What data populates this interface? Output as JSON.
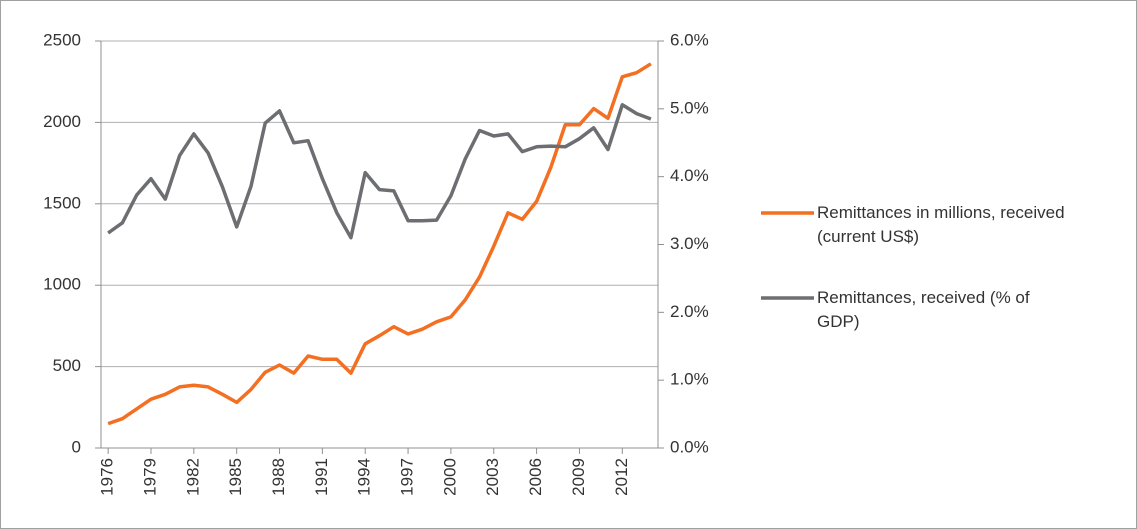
{
  "chart_data": {
    "type": "line",
    "x": [
      1976,
      1977,
      1978,
      1979,
      1980,
      1981,
      1982,
      1983,
      1984,
      1985,
      1986,
      1987,
      1988,
      1989,
      1990,
      1991,
      1992,
      1993,
      1994,
      1995,
      1996,
      1997,
      1998,
      1999,
      2000,
      2001,
      2002,
      2003,
      2004,
      2005,
      2006,
      2007,
      2008,
      2009,
      2010,
      2011,
      2012,
      2013,
      2014
    ],
    "xlim": [
      1975.5,
      2014.5
    ],
    "xticks": [
      1976,
      1979,
      1982,
      1985,
      1988,
      1991,
      1994,
      1997,
      2000,
      2003,
      2006,
      2009,
      2012
    ],
    "ylim": [
      0,
      2500
    ],
    "yticks": [
      0,
      500,
      1000,
      1500,
      2000,
      2500
    ],
    "y2lim": [
      0,
      6
    ],
    "y2ticks": [
      {
        "value": 0,
        "label": "0.0%"
      },
      {
        "value": 1,
        "label": "1.0%"
      },
      {
        "value": 2,
        "label": "2.0%"
      },
      {
        "value": 3,
        "label": "3.0%"
      },
      {
        "value": 4,
        "label": "4.0%"
      },
      {
        "value": 5,
        "label": "5.0%"
      },
      {
        "value": 6,
        "label": "6.0%"
      }
    ],
    "grid": true,
    "legend": "right",
    "series": [
      {
        "name": "Remittances in millions, received (current US$)",
        "color": "#f36f21",
        "values": [
          150,
          180,
          240,
          300,
          330,
          375,
          385,
          375,
          330,
          280,
          360,
          465,
          510,
          460,
          565,
          545,
          545,
          460,
          640,
          690,
          745,
          700,
          730,
          775,
          805,
          910,
          1050,
          1240,
          1445,
          1405,
          1515,
          1725,
          1985,
          1985,
          2085,
          2025,
          2280,
          2305,
          2360
        ]
      },
      {
        "name": "Remittances, received (% of GDP)",
        "color": "#6d6e71",
        "axis": "y2",
        "values": [
          3.17,
          3.32,
          3.73,
          3.97,
          3.67,
          4.31,
          4.63,
          4.35,
          3.85,
          3.26,
          3.86,
          4.79,
          4.97,
          4.5,
          4.53,
          3.97,
          3.47,
          3.1,
          4.06,
          3.81,
          3.79,
          3.35,
          3.35,
          3.36,
          3.72,
          4.26,
          4.68,
          4.6,
          4.63,
          4.37,
          4.44,
          4.45,
          4.44,
          4.56,
          4.72,
          4.4,
          5.06,
          4.93,
          4.85
        ]
      }
    ]
  }
}
